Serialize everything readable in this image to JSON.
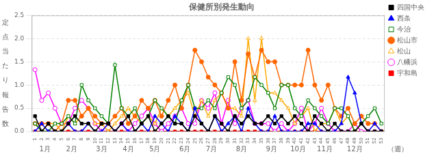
{
  "chart_data": {
    "type": "line",
    "title": "保健所別発生動向",
    "ylabel": "定点当たり報告数",
    "xlabel": "（週）",
    "annotations": [
      {
        "x": 2.5,
        "text": "1月"
      },
      {
        "x": 6.5,
        "text": "2月"
      },
      {
        "x": 11.0,
        "text": "3月"
      },
      {
        "x": 15.0,
        "text": "4月"
      },
      {
        "x": 19.0,
        "text": "5月"
      },
      {
        "x": 23.5,
        "text": "6月"
      },
      {
        "x": 27.5,
        "text": "7月"
      },
      {
        "x": 32.0,
        "text": "8月"
      },
      {
        "x": 36.5,
        "text": "9月"
      },
      {
        "x": 40.5,
        "text": "10月"
      },
      {
        "x": 44.5,
        "text": "11月"
      },
      {
        "x": 49.0,
        "text": "12月"
      }
    ],
    "x": [
      1,
      2,
      3,
      4,
      5,
      6,
      7,
      8,
      9,
      10,
      11,
      12,
      13,
      14,
      15,
      16,
      17,
      18,
      19,
      20,
      21,
      22,
      23,
      24,
      25,
      26,
      27,
      28,
      29,
      30,
      31,
      32,
      33,
      34,
      35,
      36,
      37,
      38,
      39,
      40,
      41,
      42,
      43,
      44,
      45,
      46,
      47,
      48,
      49,
      50,
      51,
      52,
      53
    ],
    "xlim": [
      0.5,
      53.5
    ],
    "xticks": [
      1,
      2,
      3,
      4,
      5,
      6,
      7,
      8,
      9,
      10,
      11,
      12,
      13,
      14,
      15,
      16,
      17,
      18,
      19,
      20,
      21,
      22,
      23,
      24,
      25,
      26,
      27,
      28,
      29,
      30,
      31,
      32,
      33,
      34,
      35,
      36,
      37,
      38,
      39,
      40,
      41,
      42,
      43,
      44,
      45,
      46,
      47,
      48,
      49,
      50,
      51,
      52,
      53
    ],
    "ylim": [
      0,
      2.5
    ],
    "yticks": [
      {
        "value": 0,
        "label": "0.0"
      },
      0.5,
      {
        "value": 1.0,
        "label": "1.0"
      },
      1.5,
      {
        "value": 2.0,
        "label": "2.0"
      },
      2.5
    ],
    "grid": "y",
    "legend": "right",
    "series": [
      {
        "name": "四国中央",
        "color": "#000000",
        "marker": "square",
        "values": [
          0.33,
          0.0,
          0.17,
          0.0,
          0.0,
          0.17,
          0.33,
          0.17,
          0.17,
          0.0,
          0.17,
          0.17,
          0.0,
          0.17,
          0.33,
          0.0,
          0.17,
          0.33,
          0.0,
          0.17,
          0.33,
          0.17,
          0.17,
          0.0,
          0.33,
          0.17,
          0.0,
          0.33,
          0.17,
          0.0,
          0.33,
          0.17,
          0.33,
          0.17,
          0.17,
          0.33,
          0.17,
          0.33,
          0.17,
          0.33,
          0.17,
          0.0,
          0.33,
          0.17,
          0.0,
          0.17,
          0.0,
          0.0,
          0.0,
          0.17,
          0.0,
          0.0,
          0.0
        ]
      },
      {
        "name": "西条",
        "color": "#0000ff",
        "marker": "triangle",
        "values": [
          0.0,
          0.17,
          0.0,
          0.0,
          0.0,
          0.17,
          0.0,
          0.0,
          0.17,
          0.0,
          0.0,
          0.17,
          0.0,
          0.17,
          0.0,
          0.0,
          0.17,
          0.0,
          0.33,
          0.17,
          0.0,
          0.33,
          0.17,
          0.0,
          0.5,
          0.17,
          0.0,
          0.33,
          0.0,
          0.17,
          0.33,
          0.0,
          0.5,
          0.17,
          0.0,
          0.0,
          0.33,
          0.0,
          0.0,
          0.0,
          0.0,
          0.17,
          0.17,
          0.0,
          0.0,
          0.0,
          0.17,
          1.17,
          0.83,
          0.17,
          0.0,
          0.17,
          0.0
        ]
      },
      {
        "name": "今治",
        "color": "#008000",
        "marker": "open-square",
        "values": [
          0.17,
          0.0,
          0.0,
          0.17,
          0.17,
          0.33,
          0.17,
          1.0,
          0.67,
          0.5,
          0.33,
          0.17,
          1.43,
          0.5,
          0.33,
          0.5,
          0.17,
          0.33,
          0.67,
          0.5,
          0.33,
          0.17,
          0.67,
          1.0,
          0.5,
          0.5,
          0.67,
          0.5,
          0.83,
          1.17,
          1.0,
          0.5,
          0.67,
          1.17,
          1.0,
          0.83,
          0.5,
          1.0,
          1.0,
          0.5,
          0.33,
          0.67,
          0.5,
          0.33,
          0.17,
          0.5,
          0.5,
          0.33,
          0.0,
          0.17,
          0.33,
          0.5,
          0.17
        ]
      },
      {
        "name": "松山市",
        "color": "#ff6600",
        "marker": "circle",
        "values": [
          0.17,
          0.17,
          0.17,
          0.0,
          0.17,
          0.67,
          0.67,
          0.33,
          0.5,
          0.33,
          0.17,
          0.17,
          0.33,
          0.5,
          0.17,
          0.33,
          0.67,
          0.5,
          0.67,
          0.33,
          0.67,
          1.0,
          0.5,
          1.0,
          1.75,
          1.5,
          1.17,
          1.0,
          0.83,
          0.5,
          1.5,
          0.67,
          1.67,
          1.17,
          1.75,
          1.5,
          1.5,
          1.0,
          1.0,
          1.0,
          1.0,
          1.75,
          1.0,
          0.67,
          1.0,
          0.5,
          0.33,
          0.5,
          0.17,
          0.33,
          0.17,
          0.17,
          0.0
        ]
      },
      {
        "name": "松山",
        "color": "#ffaa00",
        "marker": "open-triangle",
        "values": [
          0.17,
          0.0,
          0.17,
          0.17,
          0.0,
          0.33,
          0.17,
          0.33,
          0.5,
          0.17,
          0.17,
          0.0,
          0.17,
          0.33,
          0.5,
          0.33,
          0.17,
          0.33,
          0.17,
          0.5,
          0.33,
          0.5,
          0.67,
          0.83,
          0.33,
          0.67,
          0.33,
          0.67,
          0.83,
          0.5,
          0.5,
          0.33,
          2.0,
          0.67,
          2.0,
          0.83,
          0.83,
          0.67,
          0.5,
          0.17,
          0.33,
          0.5,
          0.0,
          0.17,
          0.17,
          0.5,
          0.17,
          0.33,
          0.0,
          0.17,
          0.0,
          0.0,
          0.0
        ]
      },
      {
        "name": "八幡浜",
        "color": "#ff00ff",
        "marker": "open-circle",
        "values": [
          1.33,
          0.67,
          0.83,
          0.5,
          0.17,
          0.17,
          0.5,
          0.67,
          0.5,
          0.17,
          0.0,
          0.17,
          0.0,
          0.17,
          0.0,
          0.17,
          0.33,
          0.5,
          0.17,
          0.0,
          0.17,
          0.33,
          0.5,
          0.17,
          0.17,
          0.67,
          0.5,
          0.83,
          0.17,
          0.67,
          0.17,
          0.5,
          0.67,
          0.17,
          0.17,
          0.17,
          0.0,
          0.17,
          0.0,
          0.17,
          0.5,
          0.0,
          0.17,
          0.5,
          0.17,
          0.0,
          0.0,
          0.0,
          0.17,
          0.0,
          0.0,
          0.0,
          0.0
        ]
      },
      {
        "name": "宇和島",
        "color": "#ff0000",
        "marker": "square",
        "values": [
          0.0,
          0.0,
          0.0,
          0.0,
          0.0,
          0.0,
          0.0,
          0.0,
          0.0,
          0.0,
          0.0,
          0.0,
          0.0,
          0.0,
          0.0,
          0.0,
          0.0,
          0.0,
          0.0,
          0.0,
          0.0,
          0.0,
          0.0,
          0.0,
          0.0,
          0.0,
          0.0,
          0.0,
          0.0,
          0.0,
          0.0,
          0.0,
          0.0,
          0.0,
          0.0,
          0.0,
          0.0,
          0.0,
          0.0,
          0.0,
          0.0,
          0.0,
          0.0,
          0.0,
          0.0,
          0.0,
          0.0,
          0.0,
          0.0,
          0.0,
          0.0,
          0.0,
          0.0
        ]
      }
    ]
  }
}
